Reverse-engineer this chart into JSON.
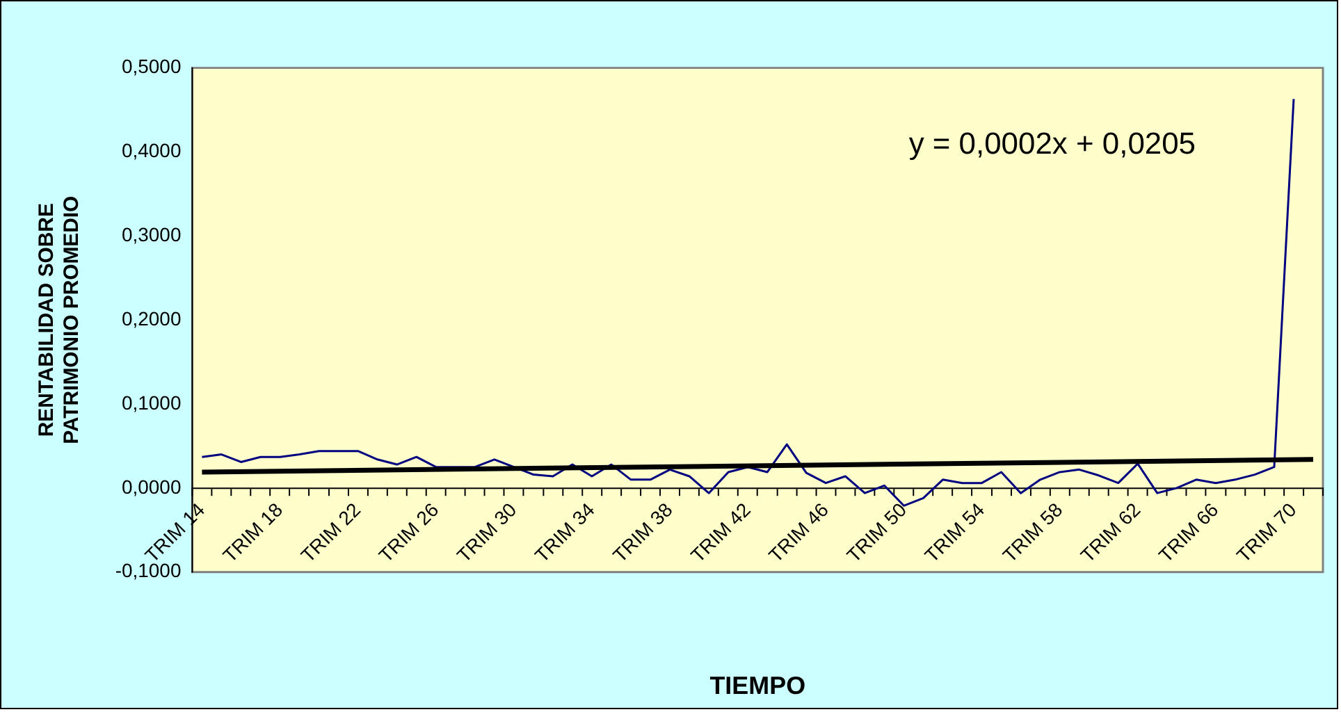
{
  "chart_data": {
    "type": "line",
    "xlabel": "TIEMPO",
    "ylabel": "RENTABILIDAD SOBRE\nPATRIMONIO PROMEDIO",
    "categories": [
      "TRIM 14",
      null,
      null,
      null,
      "TRIM 18",
      null,
      null,
      null,
      "TRIM 22",
      null,
      null,
      null,
      "TRIM 26",
      null,
      null,
      null,
      "TRIM 30",
      null,
      null,
      null,
      "TRIM 34",
      null,
      null,
      null,
      "TRIM 38",
      null,
      null,
      null,
      "TRIM 42",
      null,
      null,
      null,
      "TRIM 46",
      null,
      null,
      null,
      "TRIM 50",
      null,
      null,
      null,
      "TRIM 54",
      null,
      null,
      null,
      "TRIM 58",
      null,
      null,
      null,
      "TRIM 62",
      null,
      null,
      null,
      "TRIM 66",
      null,
      null,
      null,
      "TRIM 70",
      null
    ],
    "series": [
      {
        "color": "#000080",
        "values": [
          0.037,
          0.04,
          0.031,
          0.037,
          0.037,
          0.04,
          0.044,
          0.044,
          0.044,
          0.034,
          0.028,
          0.037,
          0.025,
          0.025,
          0.025,
          0.034,
          0.025,
          0.016,
          0.014,
          0.028,
          0.014,
          0.028,
          0.01,
          0.01,
          0.022,
          0.014,
          -0.006,
          0.019,
          0.025,
          0.019,
          0.052,
          0.018,
          0.006,
          0.014,
          -0.006,
          0.003,
          -0.021,
          -0.012,
          0.01,
          0.006,
          0.006,
          0.019,
          -0.006,
          0.01,
          0.019,
          0.022,
          0.015,
          0.006,
          0.029,
          -0.006,
          0.0,
          0.01,
          0.006,
          0.01,
          0.016,
          0.025,
          0.463,
          null
        ]
      },
      {
        "color": "#000000",
        "values": [
          0.019,
          null,
          null,
          null,
          null,
          null,
          null,
          null,
          null,
          null,
          null,
          null,
          null,
          null,
          null,
          null,
          null,
          null,
          null,
          null,
          null,
          null,
          null,
          null,
          null,
          null,
          null,
          null,
          null,
          null,
          null,
          null,
          null,
          null,
          null,
          null,
          null,
          null,
          null,
          null,
          null,
          null,
          null,
          null,
          null,
          null,
          null,
          null,
          null,
          null,
          null,
          null,
          null,
          null,
          null,
          null,
          null,
          0.034
        ]
      }
    ],
    "ylim": [
      -0.1,
      0.5
    ],
    "yticks": [
      {
        "value": -0.1,
        "label": "-0,1000"
      },
      {
        "value": 0,
        "label": "0,0000"
      },
      {
        "value": 0.1,
        "label": "0,1000"
      },
      {
        "value": 0.2,
        "label": "0,2000"
      },
      {
        "value": 0.3,
        "label": "0,3000"
      },
      {
        "value": 0.4,
        "label": "0,4000"
      },
      {
        "value": 0.5,
        "label": "0,5000"
      }
    ],
    "annotations": [
      "y = 0,0002x + 0,0205"
    ]
  }
}
